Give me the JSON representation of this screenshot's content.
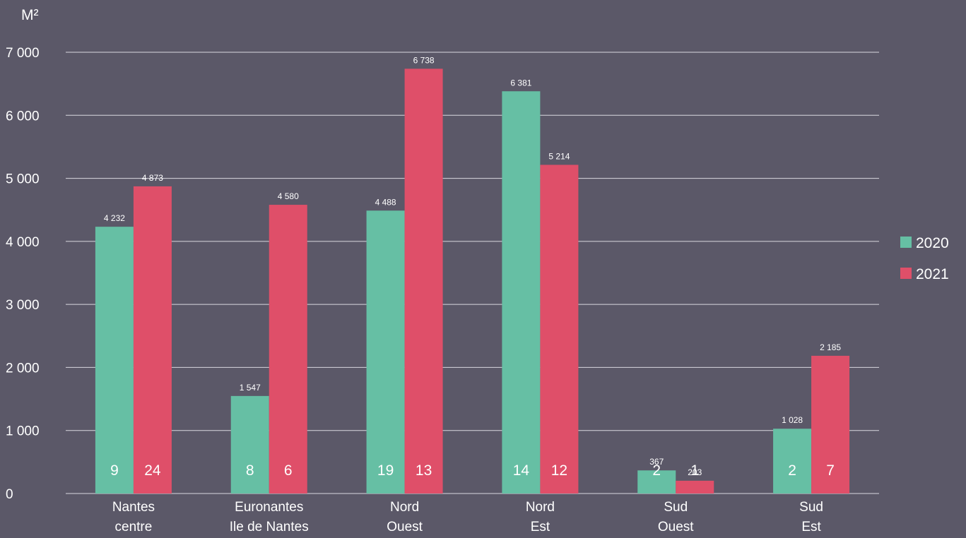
{
  "chart_data": {
    "type": "bar",
    "ylabel": "M²",
    "ylim": [
      0,
      7000
    ],
    "yticks": [
      0,
      1000,
      2000,
      3000,
      4000,
      5000,
      6000,
      7000
    ],
    "ytick_labels": [
      "0",
      "1 000",
      "2 000",
      "3 000",
      "4 000",
      "5 000",
      "6 000",
      "7 000"
    ],
    "grid": true,
    "legend_position": "right",
    "categories": [
      [
        "Nantes",
        "centre"
      ],
      [
        "Euronantes",
        "Ile de Nantes"
      ],
      [
        "Nord",
        "Ouest"
      ],
      [
        "Nord",
        "Est"
      ],
      [
        "Sud",
        "Ouest"
      ],
      [
        "Sud",
        "Est"
      ]
    ],
    "series": [
      {
        "name": "2020",
        "color": "#66bfa4",
        "values": [
          4232,
          1547,
          4488,
          6381,
          367,
          1028
        ],
        "value_labels": [
          "4 232",
          "1 547",
          "4 488",
          "6 381",
          "367",
          "1 028"
        ],
        "counts": [
          9,
          8,
          19,
          14,
          2,
          2
        ]
      },
      {
        "name": "2021",
        "color": "#df4f69",
        "values": [
          4873,
          4580,
          6738,
          5214,
          203,
          2185
        ],
        "value_labels": [
          "4 873",
          "4 580",
          "6 738",
          "5 214",
          "203",
          "2 185"
        ],
        "counts": [
          24,
          6,
          13,
          12,
          1,
          7
        ]
      }
    ]
  }
}
